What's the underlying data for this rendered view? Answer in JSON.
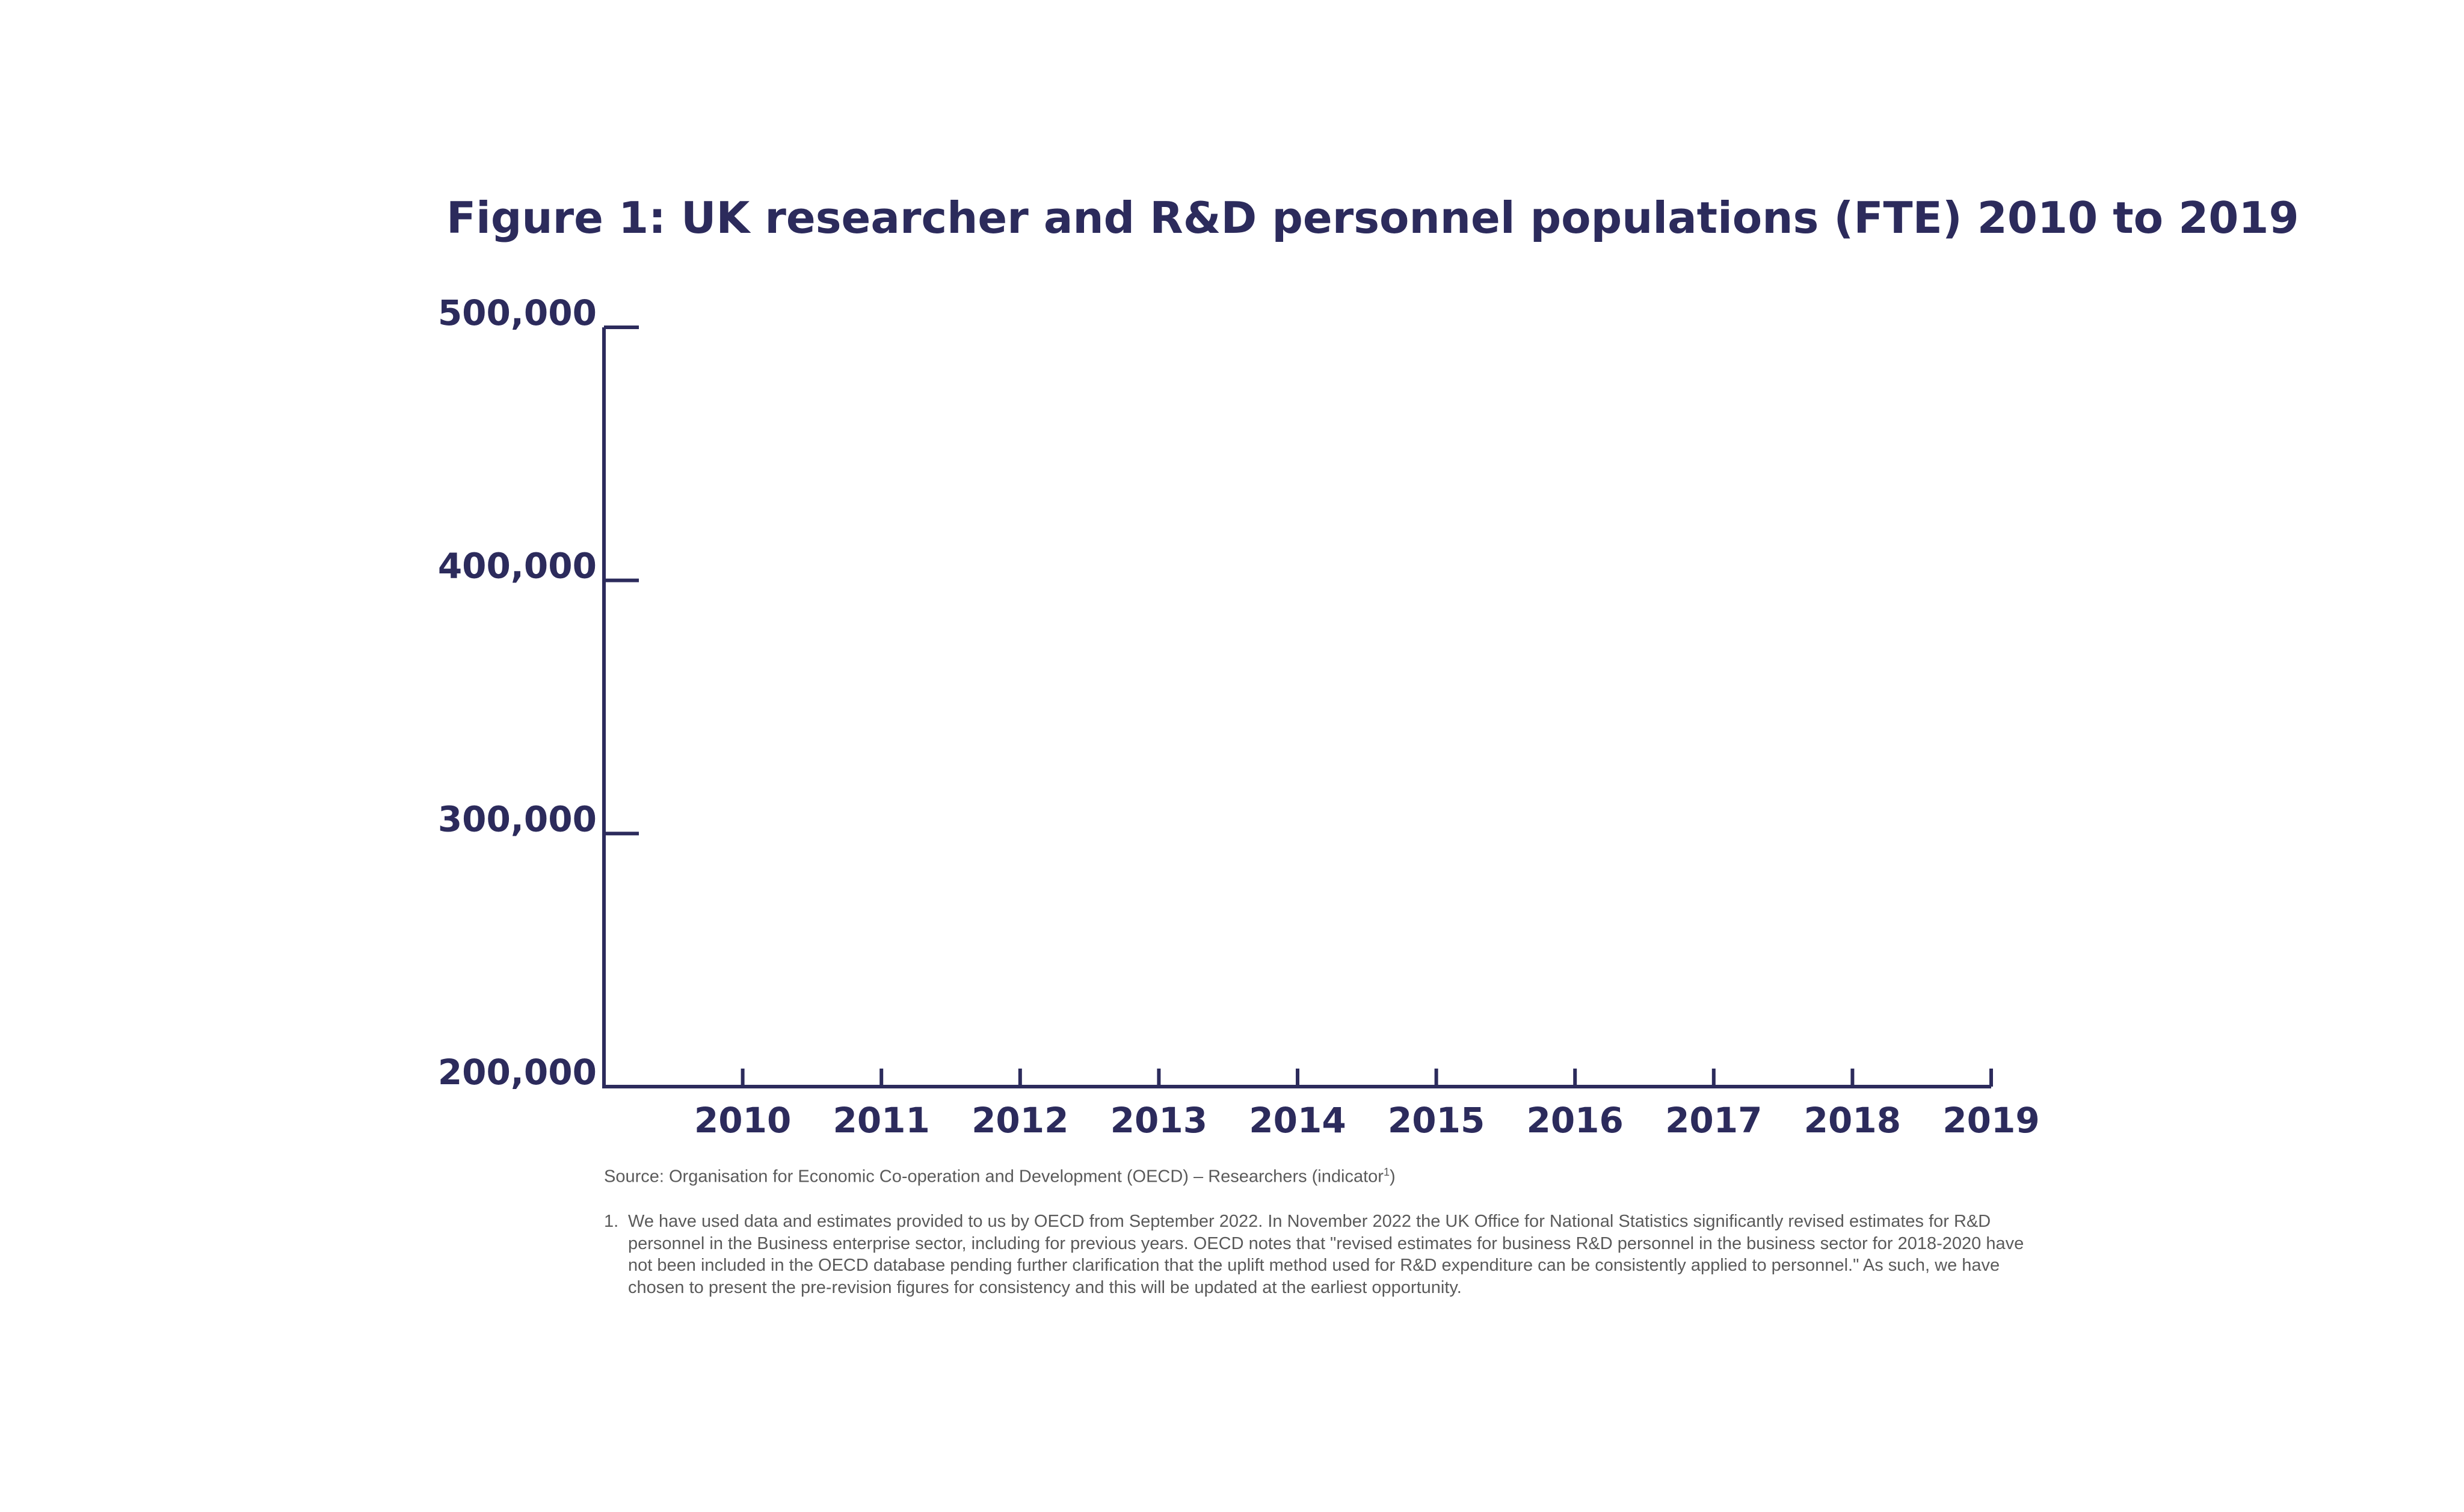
{
  "chart_data": {
    "type": "line",
    "title": "Figure 1: UK researcher and R&D personnel populations (FTE) 2010 to 2019",
    "x": [
      "2010",
      "2011",
      "2012",
      "2013",
      "2014",
      "2015",
      "2016",
      "2017",
      "2018",
      "2019"
    ],
    "y_ticks": [
      "200,000",
      "300,000",
      "400,000",
      "500,000"
    ],
    "ylim": [
      200000,
      500000
    ],
    "series": [],
    "grid": false,
    "xlabel": "",
    "ylabel": ""
  },
  "source": {
    "text": "Source: Organisation for Economic Co-operation and Development (OECD) – Researchers (indicator",
    "sup": "1",
    "close": ")"
  },
  "footnote": {
    "number": "1.",
    "text": "We have used data and estimates provided to us by OECD from September 2022. In November 2022 the UK Office for National Statistics significantly revised estimates for R&D personnel in the Business enterprise sector, including for previous years. OECD notes that \"revised estimates for business R&D personnel in the business sector for 2018-2020 have not been included in the OECD database pending further clarification that the uplift method used for R&D expenditure can be consistently applied to personnel.\" As such, we have chosen to present the pre-revision figures for consistency and this will be updated at the earliest opportunity."
  },
  "colors": {
    "ink": "#2c2b5c",
    "note": "#5a5a5a"
  }
}
